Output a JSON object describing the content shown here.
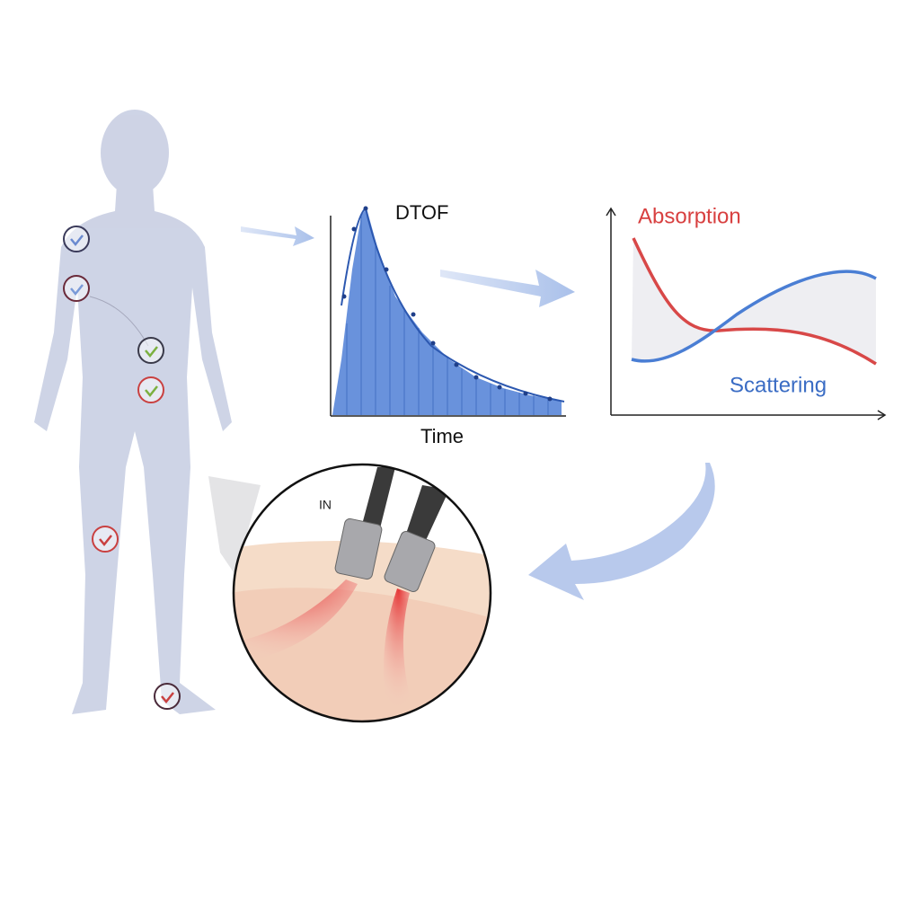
{
  "dtof_chart": {
    "title": "DTOF",
    "x_label": "Time"
  },
  "properties_chart": {
    "absorption_label": "Absorption",
    "scattering_label": "Scattering"
  },
  "probe": {
    "label": "IN"
  }
}
